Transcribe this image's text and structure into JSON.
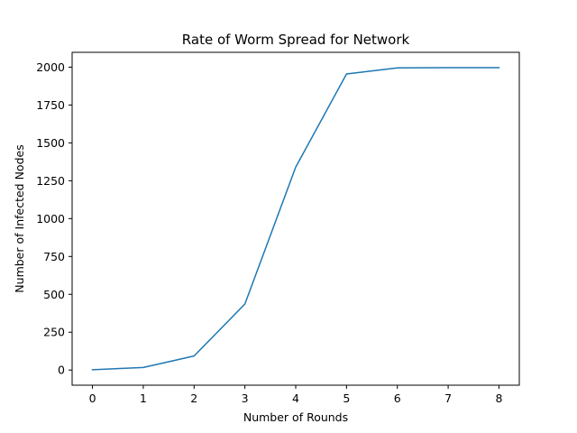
{
  "chart_data": {
    "type": "line",
    "title": "Rate of Worm Spread for Network",
    "xlabel": "Number of Rounds",
    "ylabel": "Number of Infected Nodes",
    "x": [
      0,
      1,
      2,
      3,
      4,
      5,
      6,
      7,
      8
    ],
    "series": [
      {
        "values": [
          2,
          17,
          93,
          436,
          1340,
          1955,
          1995,
          1997,
          1997
        ],
        "color": "#1f77b4"
      }
    ],
    "xlim": [
      -0.4,
      8.4
    ],
    "ylim": [
      -100,
      2098
    ],
    "xticks": [
      0,
      1,
      2,
      3,
      4,
      5,
      6,
      7,
      8
    ],
    "yticks": [
      0,
      250,
      500,
      750,
      1000,
      1250,
      1500,
      1750,
      2000
    ],
    "grid": false,
    "legend": false
  }
}
